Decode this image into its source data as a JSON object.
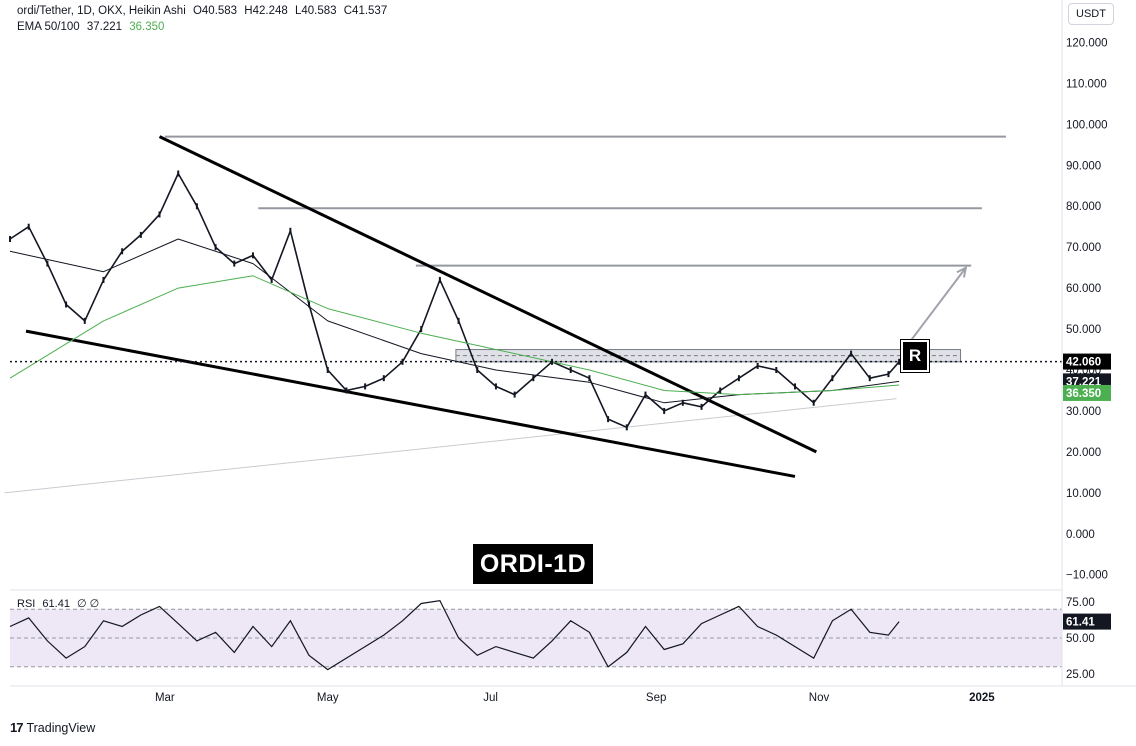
{
  "header": {
    "title": "ordi/Tether, 1D, OKX, Heikin Ashi",
    "open": "O40.583",
    "high": "H42.248",
    "low": "L40.583",
    "close": "C41.537",
    "ema_label": "EMA 50/100",
    "ema50_value": "37.221",
    "ema100_value": "36.350"
  },
  "currency_button": "USDT",
  "badge_label": "ORDI-1D",
  "r_logo": "R",
  "brand": "TradingView",
  "colors": {
    "candle": "#131722",
    "ema50": "#131722",
    "ema100": "#4caf50",
    "rsi_line": "#131722",
    "rsi_band": "#ede7f6",
    "level_lines": "#787b86",
    "resistance_zone": "#d1d4dc"
  },
  "price_axis": {
    "ticks": [
      "120.000",
      "110.000",
      "100.000",
      "90.000",
      "80.000",
      "70.000",
      "60.000",
      "50.000",
      "40.000",
      "30.000",
      "20.000",
      "10.000",
      "0.000",
      "−10.000"
    ],
    "current_price_label": "42.060",
    "ema50_label": "37.221",
    "ema100_label": "36.350"
  },
  "rsi": {
    "label": "RSI",
    "value": "61.41",
    "extra": "∅ ∅",
    "ticks": [
      "75.00",
      "50.00",
      "25.00"
    ],
    "upper": 70,
    "lower": 30
  },
  "time_axis": {
    "ticks": [
      "Mar",
      "May",
      "Jul",
      "Sep",
      "Nov",
      "2025"
    ]
  },
  "chart_data": {
    "type": "line",
    "ylim": [
      -13,
      125
    ],
    "x_range": [
      "2024-01-03",
      "2025-01-31"
    ],
    "current_price": 42.06,
    "series": [
      {
        "name": "ordi/Tether",
        "x": [
          "2024-01-03",
          "2024-01-10",
          "2024-01-17",
          "2024-01-24",
          "2024-01-31",
          "2024-02-07",
          "2024-02-14",
          "2024-02-21",
          "2024-02-28",
          "2024-03-06",
          "2024-03-13",
          "2024-03-20",
          "2024-03-27",
          "2024-04-03",
          "2024-04-10",
          "2024-04-17",
          "2024-04-24",
          "2024-05-01",
          "2024-05-08",
          "2024-05-15",
          "2024-05-22",
          "2024-05-29",
          "2024-06-05",
          "2024-06-12",
          "2024-06-19",
          "2024-06-26",
          "2024-07-03",
          "2024-07-10",
          "2024-07-17",
          "2024-07-24",
          "2024-07-31",
          "2024-08-07",
          "2024-08-14",
          "2024-08-21",
          "2024-08-28",
          "2024-09-04",
          "2024-09-11",
          "2024-09-18",
          "2024-09-25",
          "2024-10-02",
          "2024-10-09",
          "2024-10-16",
          "2024-10-23",
          "2024-10-30",
          "2024-11-06",
          "2024-11-13",
          "2024-11-20",
          "2024-11-27",
          "2024-12-01"
        ],
        "values": [
          72,
          75,
          66,
          56,
          52,
          62,
          69,
          73,
          78,
          88,
          80,
          70,
          66,
          68,
          62,
          74,
          56,
          40,
          35,
          36,
          38,
          42,
          50,
          62,
          52,
          40,
          36,
          34,
          38,
          42,
          40,
          38,
          28,
          26,
          34,
          30,
          32,
          31,
          35,
          38,
          41,
          40,
          36,
          32,
          38,
          44,
          38,
          39,
          42
        ]
      },
      {
        "name": "EMA 50",
        "x": [
          "2024-01-03",
          "2024-02-07",
          "2024-03-06",
          "2024-04-03",
          "2024-05-01",
          "2024-06-05",
          "2024-07-03",
          "2024-08-07",
          "2024-09-04",
          "2024-10-02",
          "2024-11-06",
          "2024-12-01"
        ],
        "values": [
          69,
          64,
          72,
          66,
          52,
          44,
          40,
          37,
          32,
          34,
          35,
          37.221
        ]
      },
      {
        "name": "EMA 100",
        "x": [
          "2024-01-03",
          "2024-02-07",
          "2024-03-06",
          "2024-04-03",
          "2024-05-01",
          "2024-06-05",
          "2024-07-03",
          "2024-08-07",
          "2024-09-04",
          "2024-10-02",
          "2024-11-06",
          "2024-12-01"
        ],
        "values": [
          38,
          52,
          60,
          63,
          55,
          49,
          45,
          40,
          35,
          34,
          35,
          36.35
        ]
      }
    ],
    "rsi_series": {
      "x": [
        "2024-01-03",
        "2024-01-10",
        "2024-01-17",
        "2024-01-24",
        "2024-01-31",
        "2024-02-07",
        "2024-02-14",
        "2024-02-21",
        "2024-02-28",
        "2024-03-06",
        "2024-03-13",
        "2024-03-20",
        "2024-03-27",
        "2024-04-03",
        "2024-04-10",
        "2024-04-17",
        "2024-04-24",
        "2024-05-01",
        "2024-05-08",
        "2024-05-15",
        "2024-05-22",
        "2024-05-29",
        "2024-06-05",
        "2024-06-12",
        "2024-06-19",
        "2024-06-26",
        "2024-07-03",
        "2024-07-10",
        "2024-07-17",
        "2024-07-24",
        "2024-07-31",
        "2024-08-07",
        "2024-08-14",
        "2024-08-21",
        "2024-08-28",
        "2024-09-04",
        "2024-09-11",
        "2024-09-18",
        "2024-09-25",
        "2024-10-02",
        "2024-10-09",
        "2024-10-16",
        "2024-10-23",
        "2024-10-30",
        "2024-11-06",
        "2024-11-13",
        "2024-11-20",
        "2024-11-27",
        "2024-12-01"
      ],
      "values": [
        58,
        64,
        48,
        36,
        44,
        62,
        58,
        66,
        72,
        60,
        48,
        54,
        40,
        58,
        44,
        62,
        38,
        28,
        36,
        44,
        52,
        62,
        74,
        76,
        50,
        38,
        44,
        40,
        36,
        48,
        62,
        54,
        30,
        40,
        58,
        42,
        46,
        60,
        66,
        72,
        58,
        52,
        44,
        36,
        62,
        70,
        54,
        52,
        61.41
      ]
    },
    "annotations": {
      "wedge_upper": {
        "x": [
          "2024-02-28",
          "2024-10-31"
        ],
        "y": [
          97,
          20
        ]
      },
      "wedge_lower": {
        "x": [
          "2024-01-09",
          "2024-10-23"
        ],
        "y": [
          49.5,
          14
        ]
      },
      "support_trendline": {
        "x": [
          "2024-01-01",
          "2024-11-30"
        ],
        "y": [
          10,
          33
        ]
      },
      "horizontal_levels": [
        {
          "y": 97,
          "x_start": "2024-03-01",
          "x_end": "2025-01-10"
        },
        {
          "y": 79.5,
          "x_start": "2024-04-05",
          "x_end": "2025-01-01"
        },
        {
          "y": 65.5,
          "x_start": "2024-06-03",
          "x_end": "2024-12-28"
        }
      ],
      "resistance_zone": {
        "y_low": 42,
        "y_high": 45,
        "x_start": "2024-06-18",
        "x_end": "2024-12-24"
      },
      "projection_arrow": {
        "x": [
          "2024-12-04",
          "2024-12-26"
        ],
        "y": [
          46,
          65
        ]
      }
    }
  }
}
